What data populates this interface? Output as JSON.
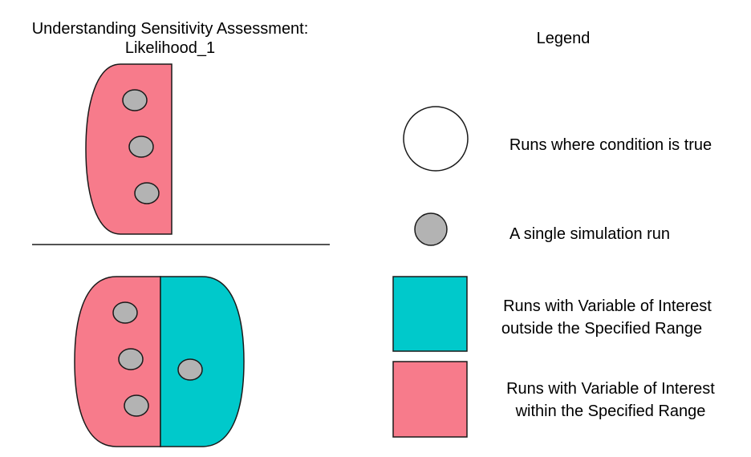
{
  "title": {
    "line1": "Understanding Sensitivity Assessment:",
    "line2": "Likelihood_1"
  },
  "legend": {
    "heading": "Legend",
    "items": [
      {
        "icon": "white-circle",
        "lines": [
          "Runs where condition is true"
        ]
      },
      {
        "icon": "gray-dot",
        "lines": [
          "A single simulation run"
        ]
      },
      {
        "icon": "teal-square",
        "lines": [
          "Runs with Variable of Interest",
          "outside the Specified Range"
        ]
      },
      {
        "icon": "pink-square",
        "lines": [
          "Runs with Variable of Interest",
          "within the Specified Range"
        ]
      }
    ]
  },
  "colors": {
    "within_range": "#F77B8B",
    "outside_range": "#00C9CB",
    "run": "#B3B3B3",
    "outline": "#1a1a1a"
  }
}
